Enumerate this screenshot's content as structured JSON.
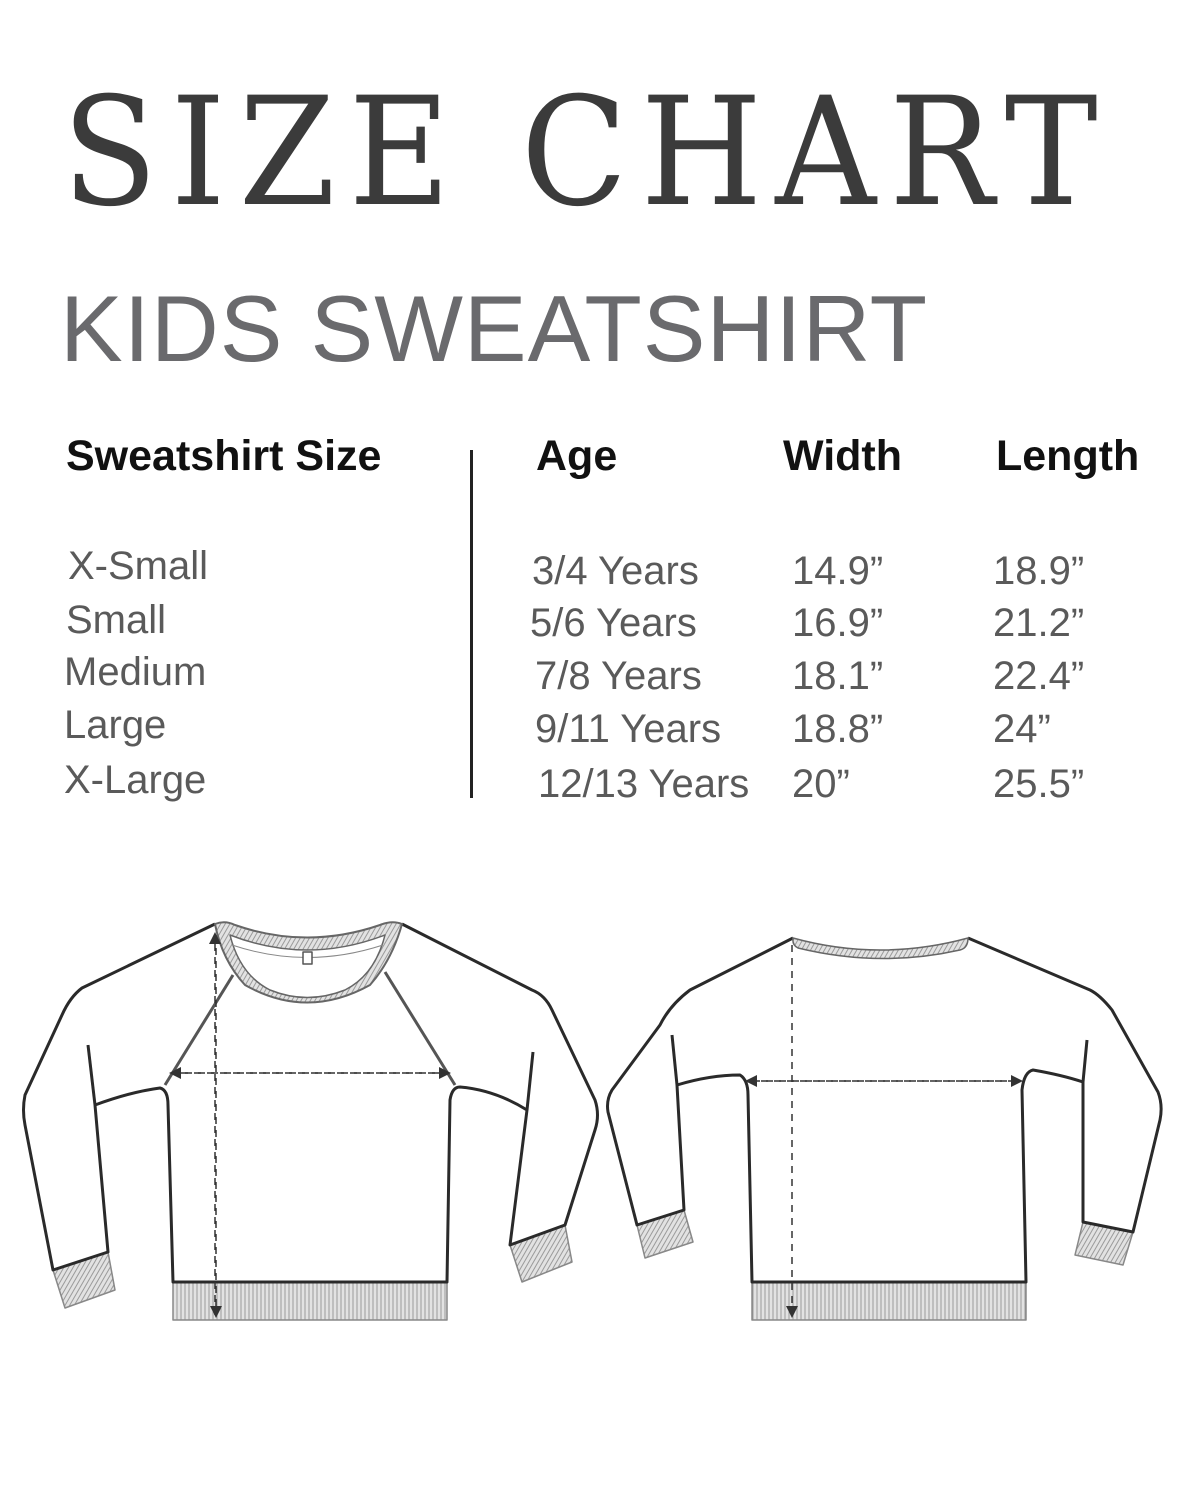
{
  "title": "SIZE CHART",
  "subtitle": "KIDS SWEATSHIRT",
  "table": {
    "headers": [
      "Sweatshirt Size",
      "Age",
      "Width",
      "Length"
    ],
    "rows": [
      {
        "size": "X-Small",
        "age": "3/4 Years",
        "width": "14.9”",
        "length": "18.9”"
      },
      {
        "size": "Small",
        "age": "5/6 Years",
        "width": "16.9”",
        "length": "21.2”"
      },
      {
        "size": "Medium",
        "age": "7/8 Years",
        "width": "18.1”",
        "length": "22.4”"
      },
      {
        "size": "Large",
        "age": "9/11 Years",
        "width": "18.8”",
        "length": "24”"
      },
      {
        "size": "X-Large",
        "age": "12/13 Years",
        "width": "20”",
        "length": "25.5”"
      }
    ]
  },
  "illustrations": [
    "sweatshirt-front-diagram",
    "sweatshirt-back-diagram"
  ],
  "colors": {
    "title": "#3b3b3b",
    "subtitle": "#6a6a6d",
    "ribbing": "#cfcfcf"
  }
}
